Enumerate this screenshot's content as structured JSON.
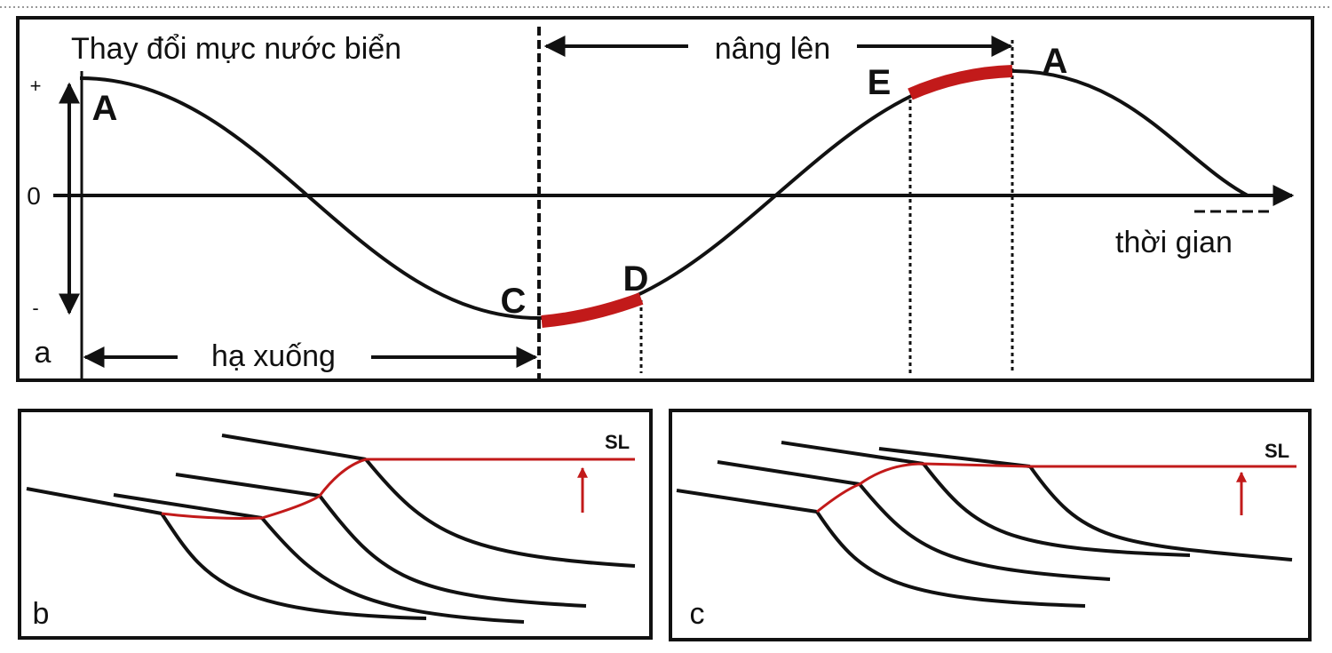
{
  "panels": {
    "a": {
      "label": "a",
      "title": "Thay đổi mực nước biển",
      "rise_label": "nâng lên",
      "fall_label": "hạ xuống",
      "time_label": "thời gian",
      "axis_labels": [
        "+",
        "0",
        "-"
      ],
      "points": [
        "A",
        "C",
        "D",
        "E",
        "A"
      ]
    },
    "b": {
      "label": "b",
      "sea_level": "SL"
    },
    "c": {
      "label": "c",
      "sea_level": "SL"
    }
  }
}
